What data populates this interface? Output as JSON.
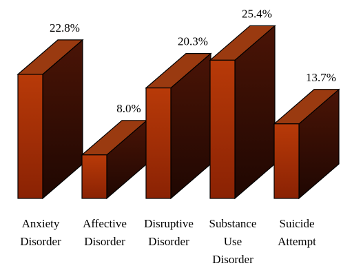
{
  "chart_data": {
    "type": "bar",
    "style": "3d",
    "categories": [
      "Anxiety Disorder",
      "Affective Disorder",
      "Disruptive Disorder",
      "Substance Use Disorder",
      "Suicide Attempt"
    ],
    "category_lines": [
      [
        "Anxiety",
        "Disorder"
      ],
      [
        "Affective",
        "Disorder"
      ],
      [
        "Disruptive",
        "Disorder"
      ],
      [
        "Substance",
        "Use",
        "Disorder"
      ],
      [
        "Suicide",
        "Attempt"
      ]
    ],
    "values": [
      22.8,
      8.0,
      20.3,
      25.4,
      13.7
    ],
    "value_labels": [
      "22.8%",
      "8.0%",
      "20.3%",
      "25.4%",
      "13.7%"
    ],
    "unit": "%",
    "grid": false,
    "legend": "none",
    "colors": {
      "front_top": "#b83a08",
      "front_bottom": "#8a2204",
      "side_top": "#4a1406",
      "side_bottom": "#1f0702",
      "top": "#9a3a10",
      "outline": "#000000"
    }
  }
}
